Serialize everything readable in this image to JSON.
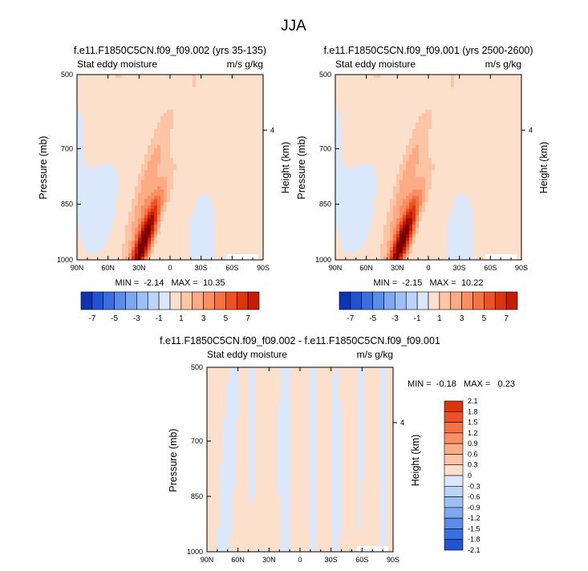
{
  "figure_title": "JJA",
  "colors": {
    "pos": [
      "#fde0cc",
      "#fcc6a6",
      "#fcab84",
      "#f98f62",
      "#f57243",
      "#ef5125",
      "#e0340f",
      "#c31d08",
      "#9e0c06",
      "#7a0000"
    ],
    "neg": [
      "#dbe8fb",
      "#bcd4f9",
      "#9cbff5",
      "#7da7f0",
      "#5b8cea",
      "#3a6fe0",
      "#2152cf",
      "#0f33b3",
      "#061c93",
      "#000c72"
    ],
    "zero": "#e9eff9",
    "missing": "#ffffff"
  },
  "chart_data": [
    {
      "id": "panel_1",
      "type": "contour",
      "title": "f.e11.F1850C5CN.f09_f09.002 (yrs 35-135)",
      "left_string": "Stat eddy moisture",
      "right_string": "m/s g/kg",
      "xlabel": "",
      "ylabel": "Pressure (mb)",
      "y2label": "Height (km)",
      "x_ticks": [
        "90N",
        "60N",
        "30N",
        "0",
        "30S",
        "60S",
        "90S"
      ],
      "x_range": [
        90,
        -90
      ],
      "y_ticks": [
        500,
        700,
        850,
        1000
      ],
      "y_range": [
        500,
        1000
      ],
      "y2_ticks": [
        4
      ],
      "stats": "MIN =  -2.14   MAX =  10.35",
      "min": -2.14,
      "max": 10.35,
      "field": {
        "background": 0.2,
        "features": [
          {
            "center": [
              40,
              400
            ],
            "width": 12,
            "depth": 210,
            "amplitude": 1.0,
            "tilt": 0.1
          },
          {
            "center": [
              -25,
              500
            ],
            "width": 9,
            "depth": 240,
            "amplitude": 0.8,
            "tilt": 0.05
          },
          {
            "center": [
              25,
              950
            ],
            "width": 5.5,
            "depth": 90,
            "amplitude": 9.8,
            "tilt": 0.12
          },
          {
            "center": [
              23,
              810
            ],
            "width": 7,
            "depth": 140,
            "amplitude": 2.6,
            "tilt": 0.1
          },
          {
            "center": [
              75,
              760
            ],
            "width": 20,
            "depth": 180,
            "amplitude": -0.45,
            "tilt": 0
          },
          {
            "center": [
              8,
              870
            ],
            "width": 3,
            "depth": 50,
            "amplitude": -0.6,
            "tilt": 0
          },
          {
            "center": [
              -30,
              930
            ],
            "width": 14,
            "depth": 110,
            "amplitude": -0.35,
            "tilt": 0
          }
        ]
      }
    },
    {
      "id": "panel_2",
      "type": "contour",
      "title": "f.e11.F1850C5CN.f09_f09.001 (yrs 2500-2600)",
      "left_string": "Stat eddy moisture",
      "right_string": "m/s g/kg",
      "xlabel": "",
      "ylabel": "Pressure (mb)",
      "y2label": "Height (km)",
      "x_ticks": [
        "90N",
        "60N",
        "30N",
        "0",
        "30S",
        "60S",
        "90S"
      ],
      "x_range": [
        90,
        -90
      ],
      "y_ticks": [
        500,
        700,
        850,
        1000
      ],
      "y_range": [
        500,
        1000
      ],
      "y2_ticks": [
        4
      ],
      "stats": "MIN =  -2.15   MAX =  10.22",
      "min": -2.15,
      "max": 10.22,
      "field": {
        "background": 0.2,
        "features": [
          {
            "center": [
              40,
              400
            ],
            "width": 12,
            "depth": 210,
            "amplitude": 1.0,
            "tilt": 0.1
          },
          {
            "center": [
              -25,
              500
            ],
            "width": 9,
            "depth": 240,
            "amplitude": 0.8,
            "tilt": 0.05
          },
          {
            "center": [
              25,
              950
            ],
            "width": 5.5,
            "depth": 90,
            "amplitude": 9.7,
            "tilt": 0.12
          },
          {
            "center": [
              23,
              810
            ],
            "width": 7,
            "depth": 140,
            "amplitude": 2.6,
            "tilt": 0.1
          },
          {
            "center": [
              75,
              760
            ],
            "width": 20,
            "depth": 180,
            "amplitude": -0.45,
            "tilt": 0
          },
          {
            "center": [
              8,
              870
            ],
            "width": 3,
            "depth": 50,
            "amplitude": -0.6,
            "tilt": 0
          },
          {
            "center": [
              -30,
              930
            ],
            "width": 14,
            "depth": 110,
            "amplitude": -0.35,
            "tilt": 0
          }
        ]
      }
    },
    {
      "id": "panel_diff",
      "type": "contour",
      "title": "f.e11.F1850C5CN.f09_f09.002 - f.e11.F1850C5CN.f09_f09.001",
      "left_string": "Stat eddy moisture",
      "right_string": "m/s g/kg",
      "xlabel": "",
      "ylabel": "Pressure (mb)",
      "y2label": "Height (km)",
      "x_ticks": [
        "90N",
        "60N",
        "30N",
        "0",
        "30S",
        "60S",
        "90S"
      ],
      "x_range": [
        90,
        -90
      ],
      "y_ticks": [
        500,
        700,
        850,
        1000
      ],
      "y_range": [
        500,
        1000
      ],
      "y2_ticks": [
        4
      ],
      "stats": "MIN =  -0.18   MAX =   0.23",
      "min": -0.18,
      "max": 0.23,
      "field": {
        "background": 0.06,
        "features": [
          {
            "center": [
              70,
              800
            ],
            "width": 5,
            "depth": 260,
            "amplitude": -0.16,
            "tilt": 0.02
          },
          {
            "center": [
              47,
              650
            ],
            "width": 3,
            "depth": 180,
            "amplitude": -0.14,
            "tilt": 0
          },
          {
            "center": [
              15,
              720
            ],
            "width": 4,
            "depth": 320,
            "amplitude": -0.15,
            "tilt": 0
          },
          {
            "center": [
              -12,
              700
            ],
            "width": 3,
            "depth": 330,
            "amplitude": -0.14,
            "tilt": 0
          },
          {
            "center": [
              -35,
              780
            ],
            "width": 4,
            "depth": 260,
            "amplitude": -0.12,
            "tilt": 0
          },
          {
            "center": [
              -58,
              650
            ],
            "width": 2.5,
            "depth": 250,
            "amplitude": -0.12,
            "tilt": 0
          },
          {
            "center": [
              -80,
              750
            ],
            "width": 3,
            "depth": 300,
            "amplitude": -0.12,
            "tilt": 0
          }
        ]
      }
    }
  ],
  "colorbars": [
    {
      "id": "colorbar_1",
      "orientation": "horizontal",
      "levels": [
        -8,
        -7,
        -6,
        -5,
        -4,
        -3,
        -2,
        -1,
        0,
        1,
        2,
        3,
        4,
        5,
        6,
        7,
        8
      ],
      "labels": [
        "-7",
        "-5",
        "-3",
        "-1",
        "1",
        "3",
        "5",
        "7"
      ]
    },
    {
      "id": "colorbar_2",
      "orientation": "horizontal",
      "levels": [
        -8,
        -7,
        -6,
        -5,
        -4,
        -3,
        -2,
        -1,
        0,
        1,
        2,
        3,
        4,
        5,
        6,
        7,
        8
      ],
      "labels": [
        "-7",
        "-5",
        "-3",
        "-1",
        "1",
        "3",
        "5",
        "7"
      ]
    },
    {
      "id": "colorbar_diff",
      "orientation": "vertical",
      "levels": [
        2.1,
        1.8,
        1.5,
        1.2,
        0.9,
        0.6,
        0.3,
        0,
        -0.3,
        -0.6,
        -0.9,
        -1.2,
        -1.5,
        -1.8,
        -2.1
      ],
      "labels": [
        "2.1",
        "1.8",
        "1.5",
        "1.2",
        "0.9",
        "0.6",
        "0.3",
        "0",
        "-0.3",
        "-0.6",
        "-0.9",
        "-1.2",
        "-1.5",
        "-1.8",
        "-2.1"
      ]
    }
  ]
}
